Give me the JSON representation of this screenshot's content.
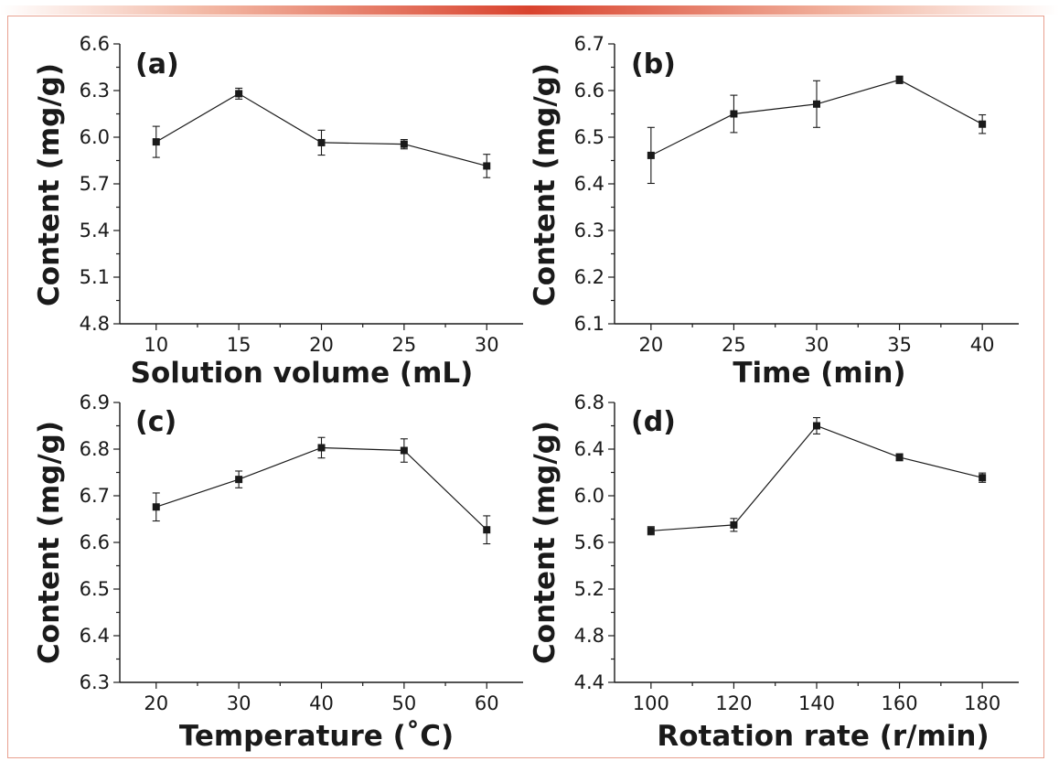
{
  "chart_data": [
    {
      "type": "line",
      "panel": "(a)",
      "xlabel": "Solution volume (mL)",
      "ylabel": "Content (mg/g)",
      "x": [
        10,
        15,
        20,
        25,
        30
      ],
      "y": [
        5.97,
        6.28,
        5.965,
        5.955,
        5.815
      ],
      "err": [
        0.1,
        0.035,
        0.08,
        0.03,
        0.075
      ],
      "xticks": [
        10,
        15,
        20,
        25,
        30
      ],
      "yticks": [
        4.8,
        5.1,
        5.4,
        5.7,
        6.0,
        6.3,
        6.6
      ],
      "ytick_labels": [
        "4.8",
        "5.1",
        "5.4",
        "5.7",
        "6.0",
        "6.3",
        "6.6"
      ],
      "xlim": [
        7.8,
        32.2
      ],
      "ylim": [
        4.8,
        6.6
      ]
    },
    {
      "type": "line",
      "panel": "(b)",
      "xlabel": "Time (min)",
      "ylabel": "Content (mg/g)",
      "x": [
        20,
        25,
        30,
        35,
        40
      ],
      "y": [
        6.461,
        6.55,
        6.571,
        6.623,
        6.528
      ],
      "err": [
        0.06,
        0.04,
        0.05,
        0.008,
        0.02
      ],
      "xticks": [
        20,
        25,
        30,
        35,
        40
      ],
      "yticks": [
        6.1,
        6.2,
        6.3,
        6.4,
        6.5,
        6.6,
        6.7
      ],
      "ytick_labels": [
        "6.1",
        "6.2",
        "6.3",
        "6.4",
        "6.5",
        "6.6",
        "6.7"
      ],
      "xlim": [
        17.8,
        42.2
      ],
      "ylim": [
        6.1,
        6.7
      ]
    },
    {
      "type": "line",
      "panel": "(c)",
      "xlabel": "Temperature (˚C)",
      "ylabel": "Content (mg/g)",
      "x": [
        20,
        30,
        40,
        50,
        60
      ],
      "y": [
        6.676,
        6.735,
        6.803,
        6.797,
        6.627
      ],
      "err": [
        0.03,
        0.018,
        0.022,
        0.025,
        0.03
      ],
      "xticks": [
        20,
        30,
        40,
        50,
        60
      ],
      "yticks": [
        6.3,
        6.4,
        6.5,
        6.6,
        6.7,
        6.8,
        6.9
      ],
      "ytick_labels": [
        "6.3",
        "6.4",
        "6.5",
        "6.6",
        "6.7",
        "6.8",
        "6.9"
      ],
      "xlim": [
        15.6,
        64.4
      ],
      "ylim": [
        6.3,
        6.9
      ]
    },
    {
      "type": "line",
      "panel": "(d)",
      "xlabel": "Rotation rate (r/min)",
      "ylabel": "Content (mg/g)",
      "x": [
        100,
        120,
        140,
        160,
        180
      ],
      "y": [
        5.7,
        5.75,
        6.6,
        6.33,
        6.155
      ],
      "err": [
        0.035,
        0.055,
        0.07,
        0.03,
        0.04
      ],
      "xticks": [
        100,
        120,
        140,
        160,
        180
      ],
      "yticks": [
        4.4,
        4.8,
        5.2,
        5.6,
        6.0,
        6.4,
        6.8
      ],
      "ytick_labels": [
        "4.4",
        "4.8",
        "5.2",
        "5.6",
        "6.0",
        "6.4",
        "6.8"
      ],
      "xlim": [
        91.2,
        188.8
      ],
      "ylim": [
        4.4,
        6.8
      ]
    }
  ]
}
